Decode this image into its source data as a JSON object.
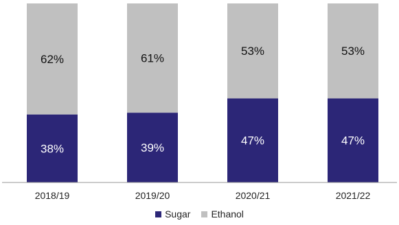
{
  "chart_data": {
    "type": "bar",
    "stacked": true,
    "categories": [
      "2018/19",
      "2019/20",
      "2020/21",
      "2021/22"
    ],
    "series": [
      {
        "name": "Sugar",
        "values": [
          38,
          39,
          47,
          47
        ],
        "labels": [
          "38%",
          "39%",
          "47%",
          "47%"
        ],
        "color": "#2c2677"
      },
      {
        "name": "Ethanol",
        "values": [
          62,
          61,
          53,
          53
        ],
        "labels": [
          "62%",
          "61%",
          "53%",
          "53%"
        ],
        "color": "#c0c0c0"
      }
    ],
    "ylim": [
      0,
      100
    ],
    "title": "",
    "xlabel": "",
    "ylabel": "",
    "grid": false,
    "legend_position": "bottom"
  }
}
